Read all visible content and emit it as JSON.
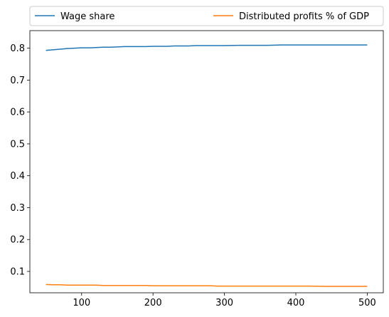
{
  "chart_data": {
    "type": "line",
    "title": "",
    "xlabel": "",
    "ylabel": "",
    "xlim": [
      27.5,
      522.5
    ],
    "ylim": [
      0.033,
      0.855
    ],
    "xticks": [
      100,
      200,
      300,
      400,
      500
    ],
    "yticks": [
      0.1,
      0.2,
      0.3,
      0.4,
      0.5,
      0.6,
      0.7,
      0.8
    ],
    "grid": false,
    "legend": {
      "placement": "top, above plot",
      "columns": 2
    },
    "series": [
      {
        "name": "Wage share",
        "color": "#1f77b4",
        "x": [
          50,
          60,
          70,
          80,
          90,
          100,
          110,
          120,
          130,
          140,
          150,
          160,
          170,
          180,
          190,
          200,
          210,
          220,
          230,
          240,
          250,
          260,
          270,
          280,
          290,
          300,
          320,
          340,
          360,
          380,
          400,
          420,
          440,
          460,
          480,
          500
        ],
        "y": [
          0.793,
          0.795,
          0.797,
          0.799,
          0.8,
          0.801,
          0.801,
          0.802,
          0.803,
          0.803,
          0.804,
          0.805,
          0.805,
          0.805,
          0.805,
          0.806,
          0.806,
          0.806,
          0.807,
          0.807,
          0.807,
          0.808,
          0.808,
          0.808,
          0.808,
          0.808,
          0.809,
          0.809,
          0.809,
          0.81,
          0.81,
          0.81,
          0.81,
          0.81,
          0.81,
          0.81
        ]
      },
      {
        "name": "Distributed profits % of GDP",
        "color": "#ff7f0e",
        "x": [
          50,
          60,
          70,
          80,
          90,
          100,
          110,
          120,
          130,
          140,
          150,
          160,
          170,
          180,
          190,
          200,
          210,
          220,
          230,
          240,
          250,
          260,
          270,
          280,
          290,
          300,
          320,
          340,
          360,
          380,
          400,
          420,
          440,
          460,
          480,
          500
        ],
        "y": [
          0.059,
          0.058,
          0.058,
          0.057,
          0.057,
          0.057,
          0.057,
          0.057,
          0.056,
          0.056,
          0.056,
          0.056,
          0.056,
          0.056,
          0.056,
          0.055,
          0.055,
          0.055,
          0.055,
          0.055,
          0.055,
          0.055,
          0.055,
          0.055,
          0.054,
          0.054,
          0.054,
          0.054,
          0.054,
          0.054,
          0.054,
          0.054,
          0.053,
          0.053,
          0.053,
          0.053
        ]
      }
    ]
  }
}
